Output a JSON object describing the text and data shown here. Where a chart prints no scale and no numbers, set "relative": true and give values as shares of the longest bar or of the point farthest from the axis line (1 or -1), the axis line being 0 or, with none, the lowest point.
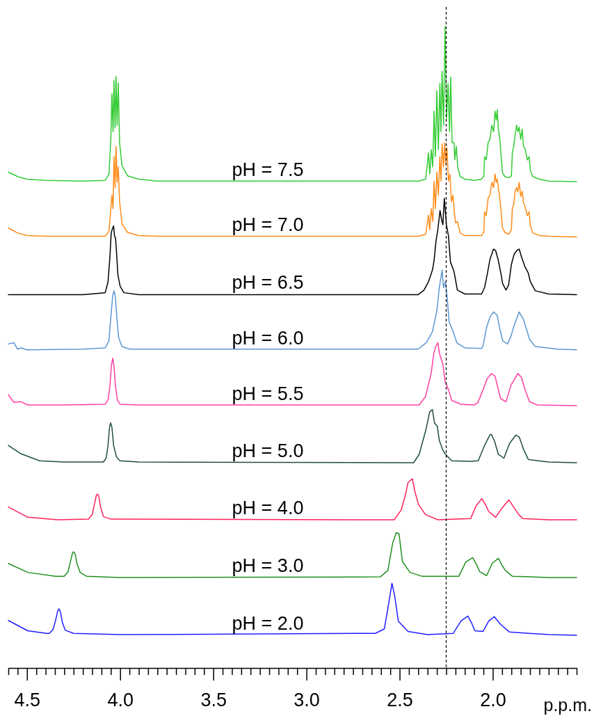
{
  "chart_data": {
    "type": "line",
    "relative": true,
    "xlabel": "p.p.m.",
    "xlim": [
      4.6,
      1.55
    ],
    "xticks": [
      {
        "value": 4.6,
        "label": null
      },
      {
        "value": 4.55,
        "label": null
      },
      {
        "value": 4.5,
        "label": "4.5"
      },
      {
        "value": 4.45,
        "label": null
      },
      {
        "value": 4.4,
        "label": null
      },
      {
        "value": 4.35,
        "label": null
      },
      {
        "value": 4.3,
        "label": null
      },
      {
        "value": 4.25,
        "label": null
      },
      {
        "value": 4.2,
        "label": null
      },
      {
        "value": 4.15,
        "label": null
      },
      {
        "value": 4.1,
        "label": null
      },
      {
        "value": 4.05,
        "label": null
      },
      {
        "value": 4,
        "label": "4.0"
      },
      {
        "value": 3.95,
        "label": null
      },
      {
        "value": 3.9,
        "label": null
      },
      {
        "value": 3.85,
        "label": null
      },
      {
        "value": 3.8,
        "label": null
      },
      {
        "value": 3.75,
        "label": null
      },
      {
        "value": 3.7,
        "label": null
      },
      {
        "value": 3.65,
        "label": null
      },
      {
        "value": 3.6,
        "label": null
      },
      {
        "value": 3.55,
        "label": null
      },
      {
        "value": 3.5,
        "label": "3.5"
      },
      {
        "value": 3.45,
        "label": null
      },
      {
        "value": 3.4,
        "label": null
      },
      {
        "value": 3.35,
        "label": null
      },
      {
        "value": 3.3,
        "label": null
      },
      {
        "value": 3.25,
        "label": null
      },
      {
        "value": 3.2,
        "label": null
      },
      {
        "value": 3.15,
        "label": null
      },
      {
        "value": 3.1,
        "label": null
      },
      {
        "value": 3.05,
        "label": null
      },
      {
        "value": 3,
        "label": "3.0"
      },
      {
        "value": 2.95,
        "label": null
      },
      {
        "value": 2.9,
        "label": null
      },
      {
        "value": 2.85,
        "label": null
      },
      {
        "value": 2.8,
        "label": null
      },
      {
        "value": 2.75,
        "label": null
      },
      {
        "value": 2.7,
        "label": null
      },
      {
        "value": 2.65,
        "label": null
      },
      {
        "value": 2.6,
        "label": null
      },
      {
        "value": 2.55,
        "label": null
      },
      {
        "value": 2.5,
        "label": "2.5"
      },
      {
        "value": 2.45,
        "label": null
      },
      {
        "value": 2.4,
        "label": null
      },
      {
        "value": 2.35,
        "label": null
      },
      {
        "value": 2.3,
        "label": null
      },
      {
        "value": 2.25,
        "label": null
      },
      {
        "value": 2.2,
        "label": null
      },
      {
        "value": 2.15,
        "label": null
      },
      {
        "value": 2.1,
        "label": null
      },
      {
        "value": 2.05,
        "label": null
      },
      {
        "value": 2,
        "label": "2.0"
      },
      {
        "value": 1.95,
        "label": null
      },
      {
        "value": 1.9,
        "label": null
      },
      {
        "value": 1.85,
        "label": null
      },
      {
        "value": 1.8,
        "label": null
      },
      {
        "value": 1.75,
        "label": null
      },
      {
        "value": 1.7,
        "label": null
      },
      {
        "value": 1.65,
        "label": null
      },
      {
        "value": 1.6,
        "label": null
      },
      {
        "value": 1.55,
        "label": null
      }
    ],
    "ref_lines": [
      {
        "axis": "x",
        "value": 2.25,
        "line_style": "dashed",
        "color": "#000000"
      }
    ],
    "series": [
      {
        "name": "pH = 7.5",
        "color": "#33cc33",
        "x": [
          4.6,
          4.55,
          4.5,
          4.4,
          4.2,
          4.08,
          4.06,
          4.05,
          4.044,
          4.038,
          4.033,
          4.027,
          4.022,
          4.016,
          4.01,
          4.003,
          3.99,
          3.96,
          3.9,
          3.8,
          2.4,
          2.36,
          2.345,
          2.338,
          2.33,
          2.322,
          2.315,
          2.308,
          2.3,
          2.292,
          2.284,
          2.278,
          2.272,
          2.264,
          2.256,
          2.248,
          2.24,
          2.232,
          2.226,
          2.218,
          2.208,
          2.204,
          2.196,
          2.188,
          2.175,
          2.15,
          2.1,
          2.06,
          2.048,
          2.044,
          2.035,
          2.025,
          2.015,
          2.005,
          1.995,
          1.988,
          1.981,
          1.976,
          1.97,
          1.962,
          1.955,
          1.948,
          1.935,
          1.915,
          1.9,
          1.895,
          1.888,
          1.88,
          1.872,
          1.865,
          1.858,
          1.85,
          1.842,
          1.835,
          1.825,
          1.815,
          1.805,
          1.798,
          1.785,
          1.75,
          1.7,
          1.55
        ],
        "values": [
          0.773,
          0.766,
          0.762,
          0.76,
          0.759,
          0.76,
          0.77,
          0.824,
          0.895,
          0.836,
          0.916,
          0.842,
          0.922,
          0.846,
          0.912,
          0.819,
          0.783,
          0.767,
          0.762,
          0.759,
          0.759,
          0.762,
          0.803,
          0.77,
          0.808,
          0.781,
          0.868,
          0.797,
          0.9,
          0.808,
          0.911,
          0.836,
          0.93,
          0.846,
          1.0,
          0.857,
          0.911,
          0.836,
          0.921,
          0.819,
          0.819,
          0.792,
          0.813,
          0.781,
          0.766,
          0.762,
          0.76,
          0.762,
          0.767,
          0.797,
          0.792,
          0.819,
          0.824,
          0.846,
          0.836,
          0.868,
          0.854,
          0.87,
          0.84,
          0.824,
          0.797,
          0.772,
          0.766,
          0.764,
          0.767,
          0.803,
          0.813,
          0.83,
          0.846,
          0.836,
          0.843,
          0.824,
          0.84,
          0.813,
          0.808,
          0.792,
          0.797,
          0.775,
          0.766,
          0.762,
          0.759,
          0.758
        ]
      },
      {
        "name": "pH = 7.0",
        "color": "#ff8c1a",
        "x": [
          4.6,
          4.55,
          4.5,
          4.4,
          4.08,
          4.06,
          4.05,
          4.044,
          4.038,
          4.033,
          4.027,
          4.022,
          4.016,
          4.01,
          4.003,
          3.99,
          3.96,
          3.9,
          3.8,
          2.4,
          2.36,
          2.345,
          2.338,
          2.33,
          2.322,
          2.315,
          2.308,
          2.3,
          2.292,
          2.284,
          2.278,
          2.272,
          2.264,
          2.258,
          2.252,
          2.246,
          2.238,
          2.23,
          2.222,
          2.214,
          2.208,
          2.2,
          2.19,
          2.175,
          2.15,
          2.06,
          2.048,
          2.044,
          2.035,
          2.025,
          2.015,
          2.005,
          1.995,
          1.988,
          1.981,
          1.976,
          1.97,
          1.962,
          1.955,
          1.948,
          1.935,
          1.915,
          1.9,
          1.895,
          1.888,
          1.88,
          1.872,
          1.865,
          1.858,
          1.85,
          1.842,
          1.835,
          1.825,
          1.815,
          1.805,
          1.798,
          1.785,
          1.75,
          1.7,
          1.55
        ],
        "values": [
          0.686,
          0.678,
          0.674,
          0.673,
          0.673,
          0.681,
          0.716,
          0.737,
          0.716,
          0.797,
          0.749,
          0.813,
          0.757,
          0.781,
          0.727,
          0.692,
          0.679,
          0.674,
          0.673,
          0.673,
          0.676,
          0.706,
          0.683,
          0.716,
          0.696,
          0.759,
          0.716,
          0.773,
          0.737,
          0.797,
          0.759,
          0.817,
          0.781,
          0.819,
          0.786,
          0.811,
          0.759,
          0.77,
          0.727,
          0.737,
          0.716,
          0.694,
          0.696,
          0.678,
          0.674,
          0.674,
          0.68,
          0.711,
          0.705,
          0.732,
          0.737,
          0.757,
          0.749,
          0.77,
          0.757,
          0.762,
          0.749,
          0.732,
          0.711,
          0.686,
          0.679,
          0.676,
          0.683,
          0.716,
          0.722,
          0.743,
          0.749,
          0.742,
          0.757,
          0.735,
          0.743,
          0.725,
          0.718,
          0.705,
          0.711,
          0.689,
          0.678,
          0.674,
          0.673,
          0.672
        ]
      },
      {
        "name": "pH = 6.5",
        "color": "#000000",
        "x": [
          4.6,
          4.2,
          4.08,
          4.065,
          4.055,
          4.048,
          4.04,
          4.035,
          4.03,
          4.025,
          4.02,
          4.012,
          4.0,
          3.98,
          3.9,
          2.4,
          2.369,
          2.345,
          2.324,
          2.315,
          2.305,
          2.295,
          2.283,
          2.275,
          2.268,
          2.26,
          2.254,
          2.249,
          2.238,
          2.227,
          2.208,
          2.19,
          2.15,
          2.06,
          2.044,
          2.03,
          2.015,
          1.996,
          1.985,
          1.97,
          1.955,
          1.947,
          1.929,
          1.915,
          1.9,
          1.885,
          1.87,
          1.858,
          1.845,
          1.828,
          1.81,
          1.798,
          1.772,
          1.7,
          1.55
        ],
        "values": [
          0.582,
          0.582,
          0.585,
          0.602,
          0.64,
          0.678,
          0.686,
          0.689,
          0.673,
          0.671,
          0.651,
          0.613,
          0.595,
          0.585,
          0.582,
          0.582,
          0.589,
          0.602,
          0.62,
          0.635,
          0.665,
          0.683,
          0.713,
          0.699,
          0.691,
          0.732,
          0.711,
          0.691,
          0.674,
          0.633,
          0.618,
          0.589,
          0.583,
          0.583,
          0.593,
          0.613,
          0.637,
          0.653,
          0.651,
          0.635,
          0.613,
          0.599,
          0.589,
          0.597,
          0.629,
          0.645,
          0.651,
          0.653,
          0.64,
          0.626,
          0.616,
          0.602,
          0.588,
          0.583,
          0.582
        ]
      },
      {
        "name": "pH = 6.0",
        "color": "#5b96d2",
        "x": [
          4.6,
          4.57,
          4.55,
          4.53,
          4.5,
          4.2,
          4.08,
          4.06,
          4.05,
          4.04,
          4.033,
          4.026,
          4.018,
          4.008,
          3.99,
          3.95,
          2.4,
          2.357,
          2.324,
          2.305,
          2.298,
          2.287,
          2.272,
          2.264,
          2.255,
          2.246,
          2.234,
          2.212,
          2.193,
          2.15,
          2.06,
          2.052,
          2.033,
          2.015,
          1.996,
          1.977,
          1.96,
          1.947,
          1.921,
          1.905,
          1.884,
          1.858,
          1.835,
          1.82,
          1.802,
          1.772,
          1.65,
          1.55
        ],
        "values": [
          0.505,
          0.507,
          0.497,
          0.499,
          0.496,
          0.497,
          0.499,
          0.51,
          0.547,
          0.58,
          0.588,
          0.58,
          0.547,
          0.515,
          0.501,
          0.497,
          0.497,
          0.507,
          0.524,
          0.55,
          0.561,
          0.593,
          0.62,
          0.593,
          0.602,
          0.582,
          0.539,
          0.524,
          0.507,
          0.499,
          0.498,
          0.502,
          0.531,
          0.547,
          0.555,
          0.55,
          0.526,
          0.51,
          0.505,
          0.515,
          0.535,
          0.555,
          0.543,
          0.529,
          0.512,
          0.501,
          0.497,
          0.496
        ]
      },
      {
        "name": "pH = 5.5",
        "color": "#ff3fa4",
        "x": [
          4.6,
          4.57,
          4.533,
          4.496,
          4.3,
          4.08,
          4.065,
          4.055,
          4.047,
          4.04,
          4.033,
          4.025,
          4.015,
          4.0,
          3.9,
          2.395,
          2.361,
          2.331,
          2.316,
          2.305,
          2.294,
          2.287,
          2.268,
          2.257,
          2.238,
          2.22,
          2.171,
          2.1,
          2.081,
          2.052,
          2.03,
          2.007,
          1.988,
          1.97,
          1.958,
          1.929,
          1.902,
          1.865,
          1.846,
          1.825,
          1.802,
          1.761,
          1.55
        ],
        "values": [
          0.426,
          0.414,
          0.415,
          0.41,
          0.41,
          0.411,
          0.418,
          0.439,
          0.471,
          0.483,
          0.471,
          0.439,
          0.418,
          0.411,
          0.41,
          0.41,
          0.423,
          0.459,
          0.491,
          0.502,
          0.507,
          0.491,
          0.474,
          0.448,
          0.434,
          0.417,
          0.411,
          0.41,
          0.413,
          0.434,
          0.451,
          0.459,
          0.455,
          0.434,
          0.42,
          0.415,
          0.441,
          0.459,
          0.453,
          0.432,
          0.415,
          0.41,
          0.409
        ]
      },
      {
        "name": "pH = 5.0",
        "color": "#1f4f35",
        "x": [
          4.6,
          4.533,
          4.432,
          4.3,
          4.09,
          4.075,
          4.065,
          4.057,
          4.051,
          4.044,
          4.035,
          4.02,
          4.0,
          3.9,
          2.425,
          2.395,
          2.361,
          2.35,
          2.339,
          2.324,
          2.313,
          2.298,
          2.287,
          2.27,
          2.257,
          2.22,
          2.119,
          2.078,
          2.044,
          2.014,
          2.007,
          1.99,
          1.97,
          1.94,
          1.91,
          1.876,
          1.858,
          1.835,
          1.809,
          1.7,
          1.55
        ],
        "values": [
          0.347,
          0.334,
          0.323,
          0.321,
          0.321,
          0.327,
          0.347,
          0.375,
          0.382,
          0.375,
          0.347,
          0.329,
          0.323,
          0.321,
          0.32,
          0.333,
          0.369,
          0.383,
          0.399,
          0.403,
          0.382,
          0.377,
          0.355,
          0.341,
          0.334,
          0.323,
          0.322,
          0.323,
          0.347,
          0.364,
          0.364,
          0.353,
          0.333,
          0.327,
          0.35,
          0.363,
          0.36,
          0.341,
          0.325,
          0.321,
          0.32
        ]
      },
      {
        "name": "pH = 4.0",
        "color": "#ff1f5a",
        "x": [
          4.6,
          4.496,
          4.335,
          4.17,
          4.15,
          4.138,
          4.128,
          4.122,
          4.115,
          4.105,
          4.09,
          4.05,
          2.529,
          2.492,
          2.47,
          2.455,
          2.432,
          2.417,
          2.399,
          2.361,
          2.294,
          2.119,
          2.089,
          2.059,
          2.04,
          2.022,
          1.985,
          1.951,
          1.914,
          1.884,
          1.86,
          1.839,
          1.7,
          1.55
        ],
        "values": [
          0.251,
          0.235,
          0.231,
          0.232,
          0.239,
          0.255,
          0.269,
          0.271,
          0.268,
          0.251,
          0.236,
          0.232,
          0.231,
          0.246,
          0.268,
          0.289,
          0.295,
          0.274,
          0.255,
          0.239,
          0.231,
          0.233,
          0.253,
          0.264,
          0.255,
          0.244,
          0.235,
          0.249,
          0.262,
          0.249,
          0.239,
          0.233,
          0.231,
          0.231
        ]
      },
      {
        "name": "pH = 3.0",
        "color": "#1f8f1f",
        "x": [
          4.6,
          4.496,
          4.346,
          4.3,
          4.28,
          4.265,
          4.255,
          4.249,
          4.242,
          4.232,
          4.215,
          4.18,
          4.0,
          2.604,
          2.563,
          2.537,
          2.518,
          2.503,
          2.485,
          2.444,
          2.38,
          2.182,
          2.145,
          2.108,
          2.085,
          2.07,
          2.033,
          2.003,
          1.97,
          1.95,
          1.932,
          1.895,
          1.7,
          1.55
        ],
        "values": [
          0.163,
          0.149,
          0.143,
          0.143,
          0.15,
          0.168,
          0.18,
          0.181,
          0.178,
          0.163,
          0.149,
          0.143,
          0.141,
          0.142,
          0.152,
          0.195,
          0.211,
          0.209,
          0.166,
          0.149,
          0.143,
          0.143,
          0.165,
          0.172,
          0.16,
          0.15,
          0.144,
          0.163,
          0.171,
          0.16,
          0.152,
          0.143,
          0.141,
          0.141
        ]
      },
      {
        "name": "pH = 2.0",
        "color": "#1f1fff",
        "x": [
          4.6,
          4.496,
          4.395,
          4.38,
          4.36,
          4.345,
          4.335,
          4.328,
          4.32,
          4.31,
          4.295,
          4.25,
          4.0,
          2.63,
          2.582,
          2.556,
          2.541,
          2.526,
          2.507,
          2.455,
          2.35,
          2.212,
          2.171,
          2.134,
          2.115,
          2.096,
          2.052,
          2.022,
          1.992,
          1.958,
          1.91,
          1.7,
          1.55
        ],
        "values": [
          0.074,
          0.058,
          0.054,
          0.054,
          0.06,
          0.076,
          0.089,
          0.092,
          0.087,
          0.071,
          0.059,
          0.054,
          0.052,
          0.054,
          0.061,
          0.105,
          0.132,
          0.112,
          0.073,
          0.057,
          0.052,
          0.054,
          0.073,
          0.081,
          0.071,
          0.058,
          0.057,
          0.073,
          0.08,
          0.068,
          0.056,
          0.052,
          0.051
        ]
      }
    ]
  }
}
